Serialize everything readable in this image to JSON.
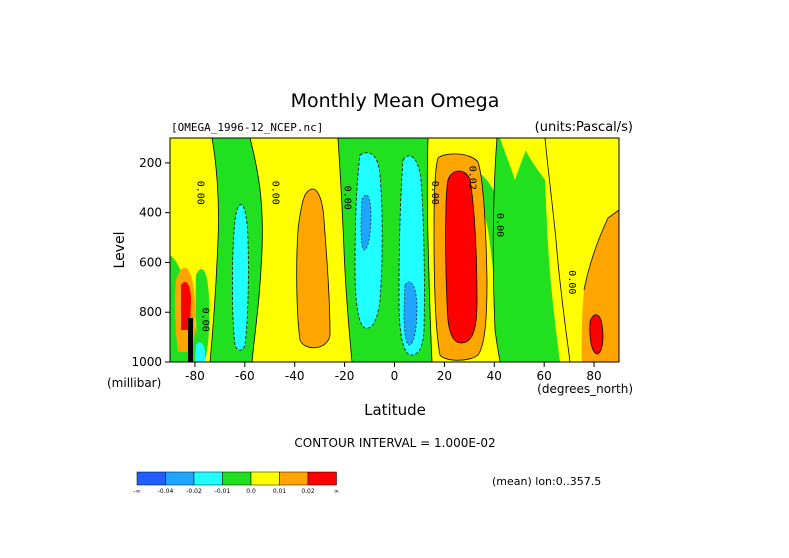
{
  "chart_data": {
    "type": "heatmap",
    "title": "Monthly Mean Omega",
    "file_label": "[OMEGA_1996-12_NCEP.nc]",
    "units_label": "(units:Pascal/s)",
    "xlabel": "Latitude",
    "xunit": "(degrees_north)",
    "ylabel": "Level",
    "yunit": "(millibar)",
    "x_ticks": [
      "-80",
      "-60",
      "-40",
      "-20",
      "0",
      "20",
      "40",
      "60",
      "80"
    ],
    "y_ticks": [
      "200",
      "400",
      "600",
      "800",
      "1000"
    ],
    "xlim": [
      -90,
      90
    ],
    "ylim": [
      1000,
      100
    ],
    "contour_interval_text": "CONTOUR INTERVAL = 1.000E-02",
    "mean_label": "(mean) lon:0..357.5",
    "contour_labels": [
      {
        "text": "0.00",
        "lat": -79,
        "lev": 320
      },
      {
        "text": "0.00",
        "lat": -49,
        "lev": 320
      },
      {
        "text": "0.00",
        "lat": -20,
        "lev": 340
      },
      {
        "text": "0.00",
        "lat": 15,
        "lev": 320
      },
      {
        "text": "0.02",
        "lat": 30,
        "lev": 260
      },
      {
        "text": "0.00",
        "lat": 41,
        "lev": 450
      },
      {
        "text": "0.00",
        "lat": 70,
        "lev": 680
      },
      {
        "text": "0.00",
        "lat": -77,
        "lev": 830
      }
    ],
    "legend": {
      "colors": [
        "#1f5fff",
        "#1fa5ff",
        "#20ffff",
        "#20e020",
        "#ffff00",
        "#ffa500",
        "#ff0000"
      ],
      "labels": [
        "-∞",
        "-0.04",
        "-0.02",
        "-0.01",
        "0.0",
        "0.01",
        "0.02",
        "∞"
      ]
    },
    "bands": [
      {
        "lat0": -90,
        "lat1": -84,
        "value": 0.005,
        "color": "#ffff00"
      },
      {
        "lat0": -84,
        "lat1": -74,
        "value": 0.005,
        "color": "#ffff00"
      },
      {
        "lat0": -74,
        "lat1": -64,
        "value": -0.005,
        "color": "#20e020"
      },
      {
        "lat0": -64,
        "lat1": -54,
        "value": -0.015,
        "color": "#20ffff"
      },
      {
        "lat0": -54,
        "lat1": -46,
        "value": -0.005,
        "color": "#20e020"
      },
      {
        "lat0": -46,
        "lat1": -30,
        "value": 0.015,
        "color": "#ffa500"
      },
      {
        "lat0": -30,
        "lat1": -22,
        "value": 0.005,
        "color": "#ffff00"
      },
      {
        "lat0": -22,
        "lat1": -18,
        "value": -0.005,
        "color": "#20e020"
      },
      {
        "lat0": -18,
        "lat1": -4,
        "value": -0.03,
        "color": "#1fa5ff"
      },
      {
        "lat0": -4,
        "lat1": 2,
        "value": -0.005,
        "color": "#20e020"
      },
      {
        "lat0": 2,
        "lat1": 12,
        "value": -0.03,
        "color": "#1fa5ff"
      },
      {
        "lat0": 12,
        "lat1": 16,
        "value": -0.005,
        "color": "#20e020"
      },
      {
        "lat0": 16,
        "lat1": 38,
        "value": 0.03,
        "color": "#ff0000"
      },
      {
        "lat0": 38,
        "lat1": 58,
        "value": -0.005,
        "color": "#20e020"
      },
      {
        "lat0": 58,
        "lat1": 72,
        "value": 0.005,
        "color": "#ffff00"
      },
      {
        "lat0": 72,
        "lat1": 90,
        "value": 0.015,
        "color": "#ffa500"
      }
    ]
  }
}
